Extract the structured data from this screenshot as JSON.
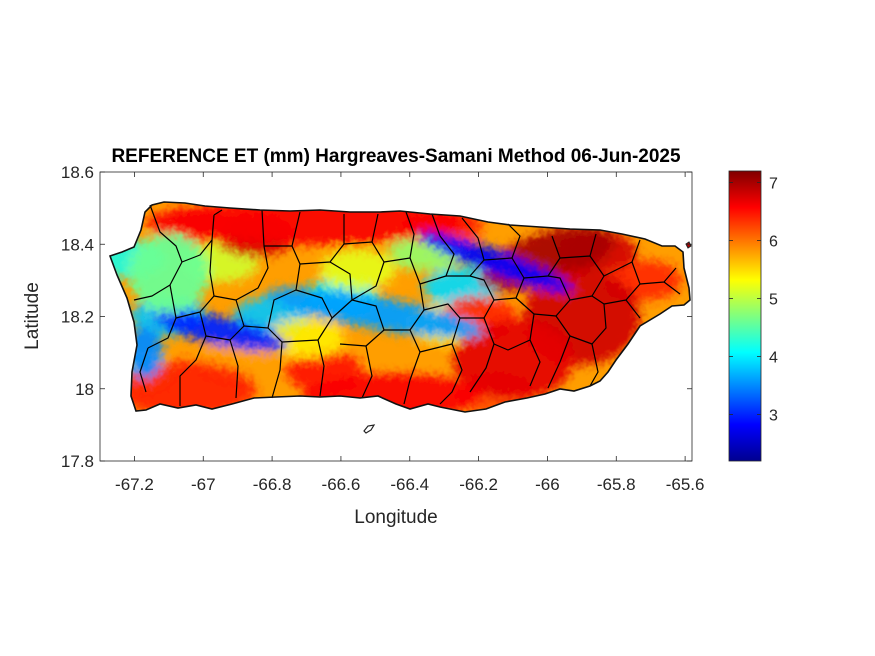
{
  "title": "REFERENCE ET (mm) Hargreaves-Samani Method  06-Jun-2025",
  "xlabel": "Longitude",
  "ylabel": "Latitude",
  "x_ticks": [
    "-67.2",
    "-67",
    "-66.8",
    "-66.6",
    "-66.4",
    "-66.2",
    "-66",
    "-65.8",
    "-65.6"
  ],
  "y_ticks": [
    "18.6",
    "18.4",
    "18.2",
    "18",
    "17.8"
  ],
  "colorbar": {
    "ticks": [
      "7",
      "6",
      "5",
      "4",
      "3"
    ],
    "range": [
      2.2,
      7.2
    ],
    "colormap": "jet"
  },
  "chart_data": {
    "type": "heatmap",
    "region": "Puerto Rico",
    "xlim": [
      -67.3,
      -65.58
    ],
    "ylim": [
      17.8,
      18.6
    ],
    "value_range": [
      2.2,
      7.2
    ],
    "units": "mm",
    "municipality_boundaries": true,
    "pattern": [
      {
        "zone": "northeast",
        "lon": -66.0,
        "lat": 18.36,
        "value": 7.0
      },
      {
        "zone": "southeast",
        "lon": -65.9,
        "lat": 18.2,
        "value": 6.8
      },
      {
        "zone": "central-south",
        "lon": -66.1,
        "lat": 18.08,
        "value": 6.7
      },
      {
        "zone": "south coast",
        "lon": -66.45,
        "lat": 17.98,
        "value": 6.6
      },
      {
        "zone": "southwest",
        "lon": -67.05,
        "lat": 18.0,
        "value": 6.4
      },
      {
        "zone": "north coast",
        "lon": -66.7,
        "lat": 18.46,
        "value": 6.6
      },
      {
        "zone": "northeast ridge",
        "lon": -66.15,
        "lat": 18.35,
        "value": 2.8
      },
      {
        "zone": "central ridge",
        "lon": -66.5,
        "lat": 18.21,
        "value": 3.6
      },
      {
        "zone": "west-central ridge",
        "lon": -66.95,
        "lat": 18.16,
        "value": 3.0
      },
      {
        "zone": "west coast",
        "lon": -67.17,
        "lat": 18.1,
        "value": 3.5
      },
      {
        "zone": "northwest",
        "lon": -67.1,
        "lat": 18.32,
        "value": 4.6
      }
    ]
  }
}
